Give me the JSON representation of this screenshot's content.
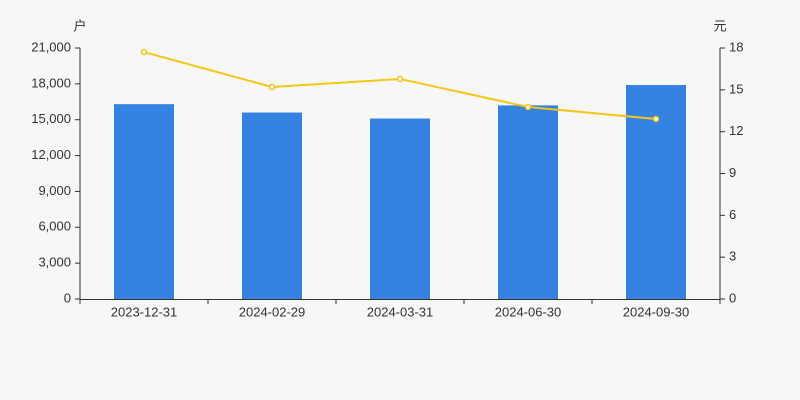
{
  "chart_data": {
    "type": "bar_line",
    "y_label": "户",
    "y2_label": "元",
    "categories": [
      "2023-12-31",
      "2024-02-29",
      "2024-03-31",
      "2024-06-30",
      "2024-09-30"
    ],
    "series": [
      {
        "type": "bar",
        "color": "#3482e2",
        "values": [
          16300,
          15600,
          15100,
          16200,
          17900
        ]
      },
      {
        "type": "line",
        "axis": "y2",
        "color": "#f5c518",
        "values": [
          17.71,
          15.2,
          15.78,
          13.77,
          12.91
        ]
      }
    ],
    "ylim": [
      0,
      21000
    ],
    "yticks": [
      0,
      {
        "value": 3000,
        "label": "3,000"
      },
      {
        "value": 6000,
        "label": "6,000"
      },
      {
        "value": 9000,
        "label": "9,000"
      },
      {
        "value": 12000,
        "label": "12,000"
      },
      {
        "value": 15000,
        "label": "15,000"
      },
      {
        "value": 18000,
        "label": "18,000"
      },
      {
        "value": 21000,
        "label": "21,000"
      }
    ],
    "y2lim": [
      0,
      18
    ],
    "y2ticks": [
      0,
      3,
      6,
      9,
      12,
      15,
      18
    ],
    "grid": false
  }
}
